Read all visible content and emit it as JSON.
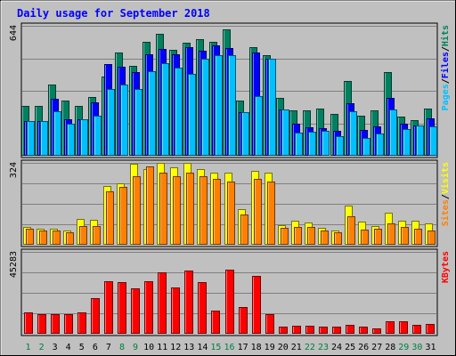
{
  "chart_data": {
    "type": "bar",
    "title": "Daily usage for September 2018",
    "categories": [
      "1",
      "2",
      "3",
      "4",
      "5",
      "6",
      "7",
      "8",
      "9",
      "10",
      "11",
      "12",
      "13",
      "14",
      "15",
      "16",
      "17",
      "18",
      "19",
      "20",
      "21",
      "22",
      "23",
      "24",
      "25",
      "26",
      "27",
      "28",
      "29",
      "30",
      "31"
    ],
    "weekend_days": [
      "1",
      "2",
      "8",
      "9",
      "15",
      "16",
      "22",
      "23",
      "29",
      "30"
    ],
    "panels": [
      {
        "name": "hits-files-pages",
        "y_max_label": "644",
        "ylim": [
          0,
          644
        ],
        "side_label": [
          {
            "text": "Pages",
            "color": "#00c0ff"
          },
          {
            "text": "/",
            "color": "#000000"
          },
          {
            "text": "Files",
            "color": "#0000ff"
          },
          {
            "text": "/",
            "color": "#000000"
          },
          {
            "text": "Hits",
            "color": "#008060"
          }
        ],
        "series": [
          {
            "name": "Hits",
            "color": "#008060",
            "values": [
              249,
              249,
              354,
              275,
              249,
              291,
              393,
              511,
              446,
              564,
              606,
              527,
              560,
              577,
              564,
              626,
              275,
              538,
              499,
              285,
              226,
              226,
              232,
              209,
              370,
              197,
              223,
              416,
              196,
              178,
              235
            ]
          },
          {
            "name": "Files",
            "color": "#0000ff",
            "values": [
              170,
              170,
              281,
              180,
              183,
              266,
              456,
              439,
              414,
              505,
              528,
              505,
              538,
              521,
              548,
              534,
              216,
              513,
              480,
              228,
              157,
              141,
              137,
              124,
              262,
              128,
              144,
              286,
              160,
              148,
              186
            ]
          },
          {
            "name": "Pages",
            "color": "#00c0ff",
            "values": [
              170,
              170,
              222,
              160,
              183,
              200,
              332,
              355,
              333,
              420,
              460,
              437,
              405,
              480,
              497,
              499,
              216,
              294,
              480,
              228,
              114,
              117,
              124,
              96,
              222,
              89,
              110,
              230,
              132,
              148,
              144
            ]
          }
        ]
      },
      {
        "name": "visits-sites",
        "y_max_label": "324",
        "ylim": [
          0,
          324
        ],
        "side_label": [
          {
            "text": "Sites",
            "color": "#ff8000"
          },
          {
            "text": "/",
            "color": "#000000"
          },
          {
            "text": "Visits",
            "color": "#ffff00"
          }
        ],
        "series": [
          {
            "name": "Visits",
            "color": "#ffff00",
            "values": [
              70,
              64,
              64,
              56,
              101,
              99,
              231,
              242,
              319,
              301,
              324,
              308,
              324,
              301,
              287,
              287,
              141,
              294,
              284,
              78,
              95,
              89,
              67,
              56,
              155,
              92,
              75,
              127,
              96,
              95,
              85
            ]
          },
          {
            "name": "Sites",
            "color": "#ff8000",
            "values": [
              64,
              56,
              56,
              49,
              75,
              75,
              210,
              230,
              271,
              311,
              287,
              271,
              287,
              271,
              260,
              249,
              119,
              260,
              251,
              68,
              70,
              72,
              56,
              49,
              114,
              61,
              64,
              85,
              70,
              64,
              56
            ]
          }
        ]
      },
      {
        "name": "kbytes",
        "y_max_label": "45283",
        "ylim": [
          0,
          45283
        ],
        "side_label": [
          {
            "text": "KBytes",
            "color": "#ff0000"
          }
        ],
        "series": [
          {
            "name": "KBytes",
            "color": "#ff0000",
            "values": [
              11630,
              10936,
              10859,
              10971,
              11970,
              19658,
              29121,
              28468,
              25179,
              29203,
              33849,
              25622,
              35082,
              28441,
              12974,
              35421,
              14635,
              31910,
              10800,
              3958,
              4346,
              4195,
              3960,
              3916,
              5130,
              3959,
              2794,
              6895,
              7006,
              4941,
              5347
            ]
          }
        ]
      }
    ]
  }
}
